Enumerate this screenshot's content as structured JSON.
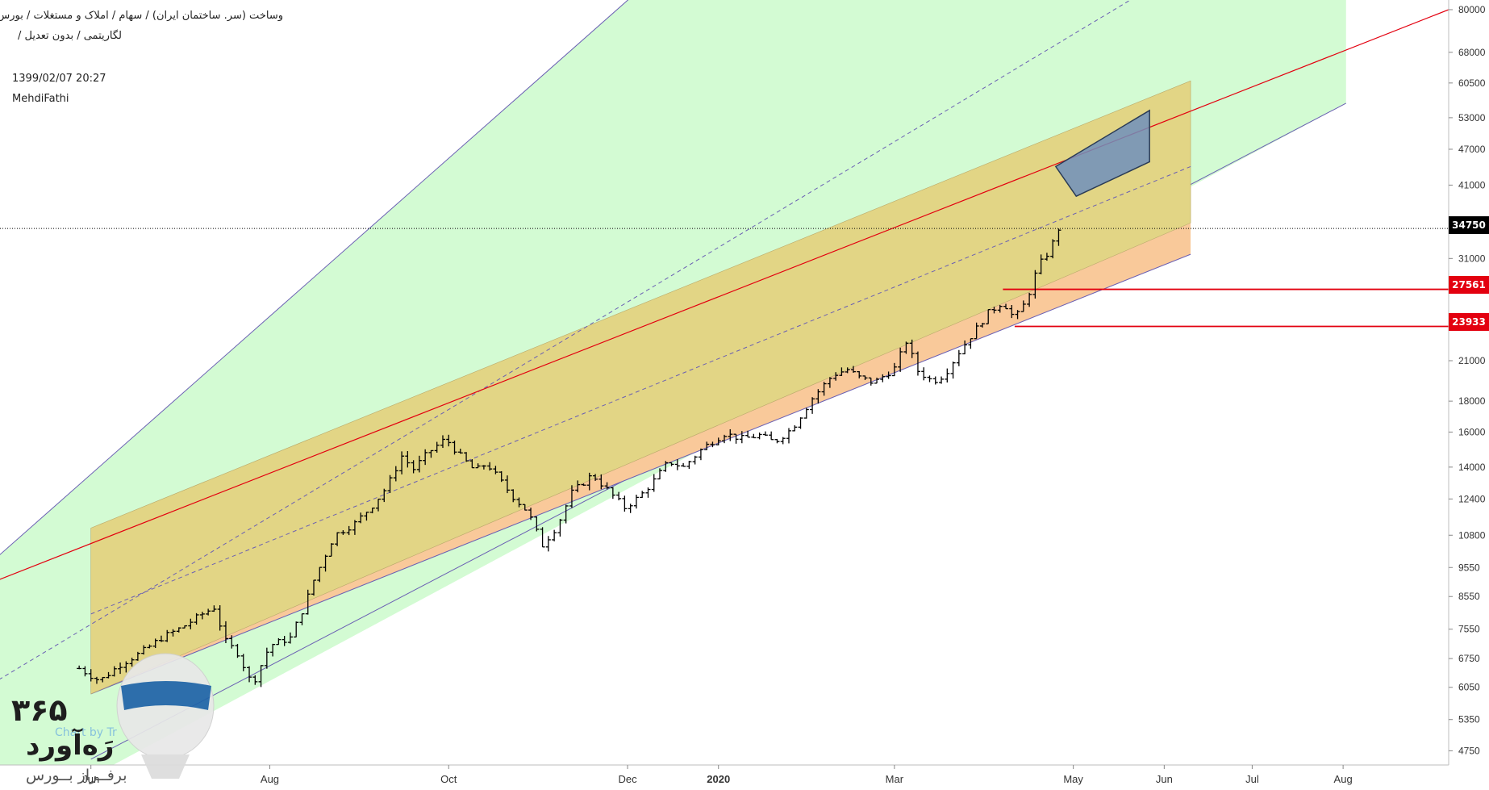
{
  "header": {
    "title": "وساخت (سر. ساختمان ایران) / سهام / املاک و مستغلات / بورس تهران",
    "subtitle": "لگاریتمی / بدون تعدیل /",
    "date": "1399/02/07 20:27",
    "author": "MehdiFathi"
  },
  "watermark": {
    "number": "۳۶۵",
    "brand": "رَه‌آورد",
    "sub": "برفــراز بــورس",
    "tv_text": "Chart by Tr"
  },
  "tags": {
    "last": "34750",
    "level1": "27561",
    "level2": "23933"
  },
  "colors": {
    "green_channel": "#d3fbd3",
    "yellow_channel": "#e2d585",
    "orange_wedge": "#f9c99a",
    "red_line": "#e3000f",
    "channel_line": "#6a5fb3",
    "blue_box": "#6f8fbc"
  },
  "chart_data": {
    "type": "bar",
    "scale": "log",
    "ylim": [
      4500,
      83000
    ],
    "xlim": [
      "2019-05-01",
      "2020-09-06"
    ],
    "y_ticks": [
      4750,
      5350,
      6050,
      6750,
      7550,
      8550,
      9550,
      10800,
      12400,
      14000,
      16000,
      18000,
      21000,
      23933,
      27561,
      31000,
      34750,
      41000,
      47000,
      53000,
      60500,
      68000,
      80000
    ],
    "x_ticks": [
      {
        "label": "Jun",
        "date": "2019-06-01"
      },
      {
        "label": "Aug",
        "date": "2019-08-01"
      },
      {
        "label": "Oct",
        "date": "2019-10-01"
      },
      {
        "label": "Dec",
        "date": "2019-12-01"
      },
      {
        "label": "2020",
        "date": "2020-01-01"
      },
      {
        "label": "Mar",
        "date": "2020-03-01"
      },
      {
        "label": "May",
        "date": "2020-05-01"
      },
      {
        "label": "Jun",
        "date": "2020-06-01"
      },
      {
        "label": "Jul",
        "date": "2020-07-01"
      },
      {
        "label": "Aug",
        "date": "2020-08-01"
      }
    ],
    "last_price": 34750,
    "horizontal_levels": [
      {
        "value": 27561,
        "from": "2020-04-07"
      },
      {
        "value": 23933,
        "from": "2020-04-11"
      }
    ],
    "price_path": [
      [
        "2019-05-28",
        6500
      ],
      [
        "2019-06-04",
        6200
      ],
      [
        "2019-06-11",
        6600
      ],
      [
        "2019-06-18",
        6900
      ],
      [
        "2019-06-25",
        7300
      ],
      [
        "2019-07-02",
        7600
      ],
      [
        "2019-07-09",
        8000
      ],
      [
        "2019-07-13",
        8200
      ],
      [
        "2019-07-17",
        7200
      ],
      [
        "2019-07-21",
        6900
      ],
      [
        "2019-07-26",
        6100
      ],
      [
        "2019-08-01",
        7100
      ],
      [
        "2019-08-08",
        7300
      ],
      [
        "2019-08-13",
        8300
      ],
      [
        "2019-08-16",
        9100
      ],
      [
        "2019-08-23",
        10800
      ],
      [
        "2019-08-30",
        11300
      ],
      [
        "2019-09-05",
        12100
      ],
      [
        "2019-09-10",
        13000
      ],
      [
        "2019-09-15",
        14600
      ],
      [
        "2019-09-19",
        13900
      ],
      [
        "2019-09-24",
        14800
      ],
      [
        "2019-09-30",
        15600
      ],
      [
        "2019-10-05",
        14600
      ],
      [
        "2019-10-10",
        13800
      ],
      [
        "2019-10-14",
        14200
      ],
      [
        "2019-10-18",
        13400
      ],
      [
        "2019-10-23",
        12500
      ],
      [
        "2019-10-28",
        11800
      ],
      [
        "2019-11-02",
        10400
      ],
      [
        "2019-11-07",
        11200
      ],
      [
        "2019-11-12",
        12700
      ],
      [
        "2019-11-19",
        13600
      ],
      [
        "2019-11-25",
        12700
      ],
      [
        "2019-11-30",
        12000
      ],
      [
        "2019-12-05",
        12500
      ],
      [
        "2019-12-10",
        13300
      ],
      [
        "2019-12-15",
        14300
      ],
      [
        "2019-12-20",
        14000
      ],
      [
        "2019-12-27",
        15100
      ],
      [
        "2020-01-03",
        15900
      ],
      [
        "2020-01-09",
        15600
      ],
      [
        "2020-01-15",
        15800
      ],
      [
        "2020-01-20",
        15400
      ],
      [
        "2020-01-26",
        16200
      ],
      [
        "2020-02-02",
        18200
      ],
      [
        "2020-02-09",
        19900
      ],
      [
        "2020-02-14",
        20300
      ],
      [
        "2020-02-18",
        19700
      ],
      [
        "2020-02-23",
        19300
      ],
      [
        "2020-03-01",
        20400
      ],
      [
        "2020-03-05",
        22600
      ],
      [
        "2020-03-09",
        20200
      ],
      [
        "2020-03-14",
        19400
      ],
      [
        "2020-03-18",
        19900
      ],
      [
        "2020-03-23",
        21700
      ],
      [
        "2020-03-28",
        23400
      ],
      [
        "2020-04-02",
        25200
      ],
      [
        "2020-04-07",
        26300
      ],
      [
        "2020-04-11",
        24600
      ],
      [
        "2020-04-15",
        26400
      ],
      [
        "2020-04-19",
        30100
      ],
      [
        "2020-04-23",
        32000
      ],
      [
        "2020-04-26",
        34750
      ]
    ]
  }
}
